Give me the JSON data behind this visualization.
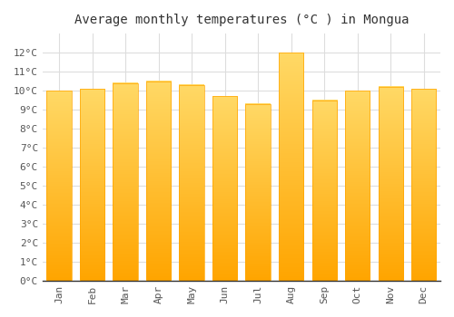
{
  "title": "Average monthly temperatures (°C ) in Mongua",
  "months": [
    "Jan",
    "Feb",
    "Mar",
    "Apr",
    "May",
    "Jun",
    "Jul",
    "Aug",
    "Sep",
    "Oct",
    "Nov",
    "Dec"
  ],
  "values": [
    10.0,
    10.1,
    10.4,
    10.5,
    10.3,
    9.7,
    9.3,
    12.0,
    9.5,
    10.0,
    10.2,
    10.1
  ],
  "bar_color_top": "#FFD966",
  "bar_color_bottom": "#FFA500",
  "background_color": "#FFFFFF",
  "grid_color": "#DDDDDD",
  "ylim": [
    0,
    13
  ],
  "yticks": [
    0,
    1,
    2,
    3,
    4,
    5,
    6,
    7,
    8,
    9,
    10,
    11,
    12
  ],
  "title_fontsize": 10,
  "tick_fontsize": 8,
  "font_family": "monospace"
}
